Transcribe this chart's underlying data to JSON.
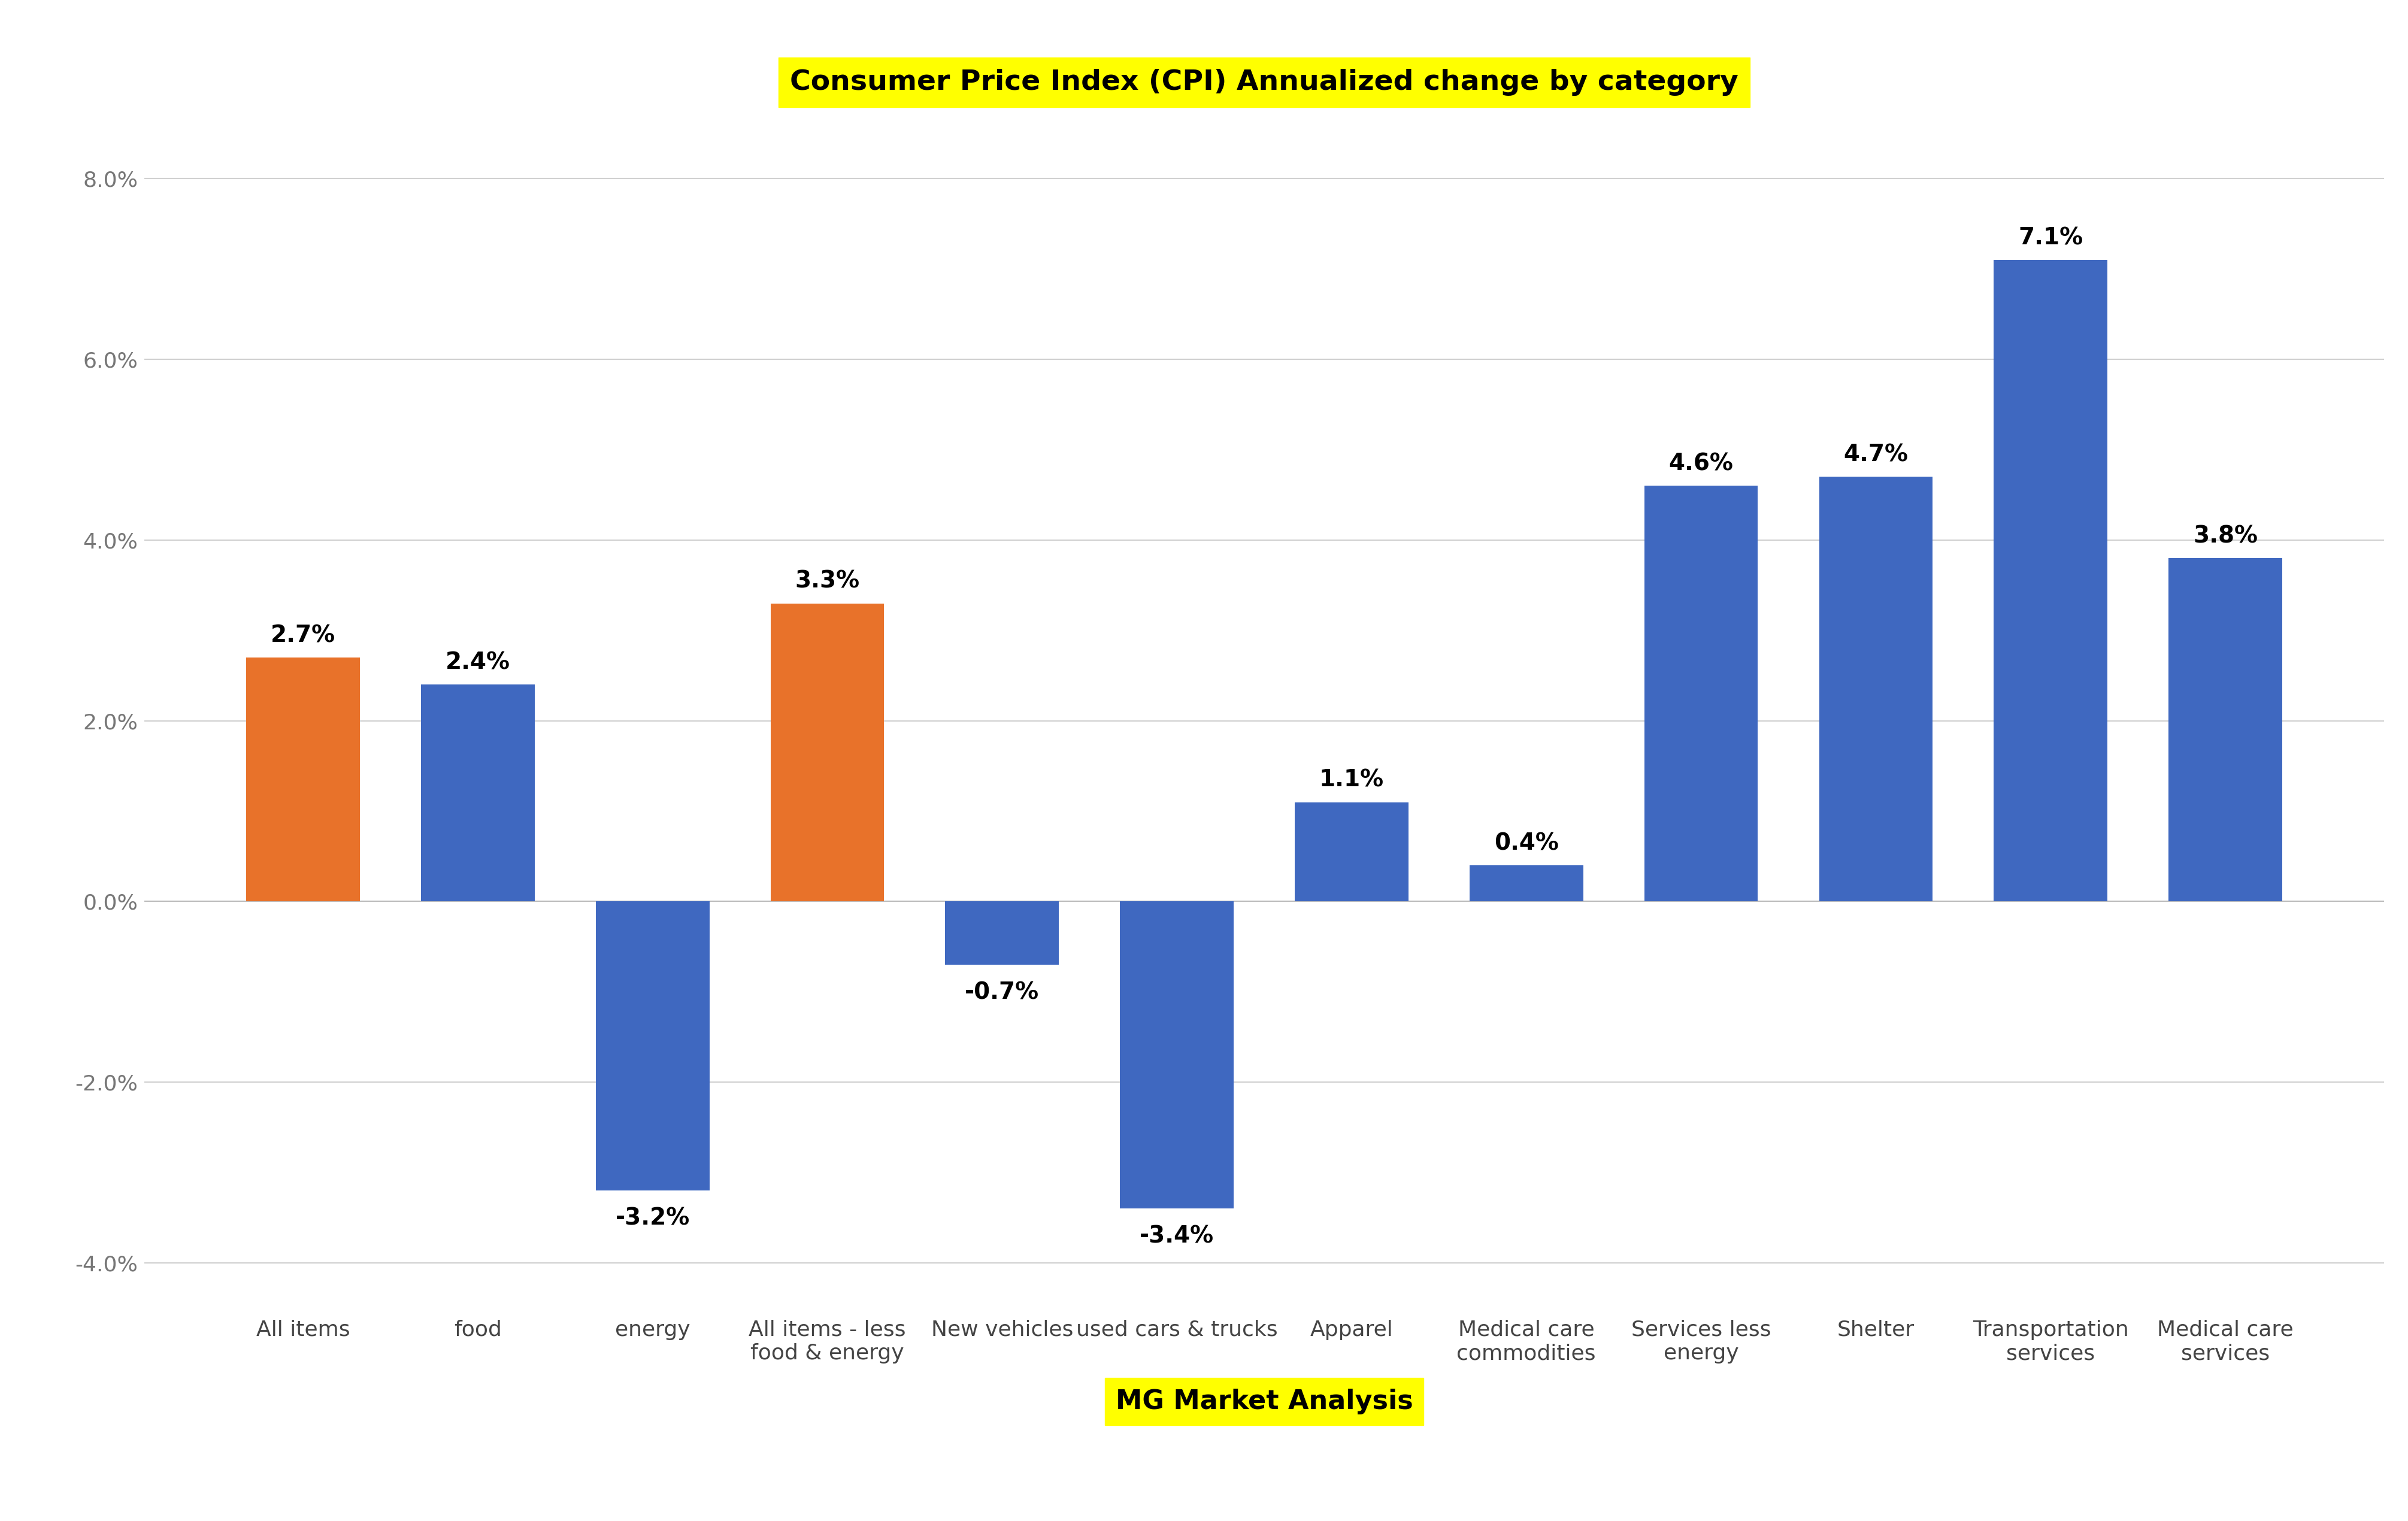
{
  "categories": [
    "All items",
    "food",
    "energy",
    "All items - less\nfood & energy",
    "New vehicles",
    "used cars & trucks",
    "Apparel",
    "Medical care\ncommodities",
    "Services less\nenergy",
    "Shelter",
    "Transportation\nservices",
    "Medical care\nservices"
  ],
  "values": [
    2.7,
    2.4,
    -3.2,
    3.3,
    -0.7,
    -3.4,
    1.1,
    0.4,
    4.6,
    4.7,
    7.1,
    3.8
  ],
  "bar_colors": [
    "#E8722A",
    "#3F68C0",
    "#3F68C0",
    "#E8722A",
    "#3F68C0",
    "#3F68C0",
    "#3F68C0",
    "#3F68C0",
    "#3F68C0",
    "#3F68C0",
    "#3F68C0",
    "#3F68C0"
  ],
  "title": "Consumer Price Index (CPI) Annualized change by category",
  "title_color": "#000000",
  "title_bg_color": "#FFFF00",
  "xlabel": "MG Market Analysis",
  "xlabel_color": "#000000",
  "xlabel_bg_color": "#FFFF00",
  "ylim": [
    -4.5,
    8.8
  ],
  "yticks": [
    -4.0,
    -2.0,
    0.0,
    2.0,
    4.0,
    6.0,
    8.0
  ],
  "ytick_labels": [
    "-4.0%",
    "-2.0%",
    "0.0%",
    "2.0%",
    "4.0%",
    "6.0%",
    "8.0%"
  ],
  "grid_color": "#D0D0D0",
  "background_color": "#FFFFFF",
  "label_fontsize": 26,
  "title_fontsize": 34,
  "xlabel_fontsize": 32,
  "tick_fontsize": 26,
  "value_fontsize": 28,
  "bar_width": 0.65
}
